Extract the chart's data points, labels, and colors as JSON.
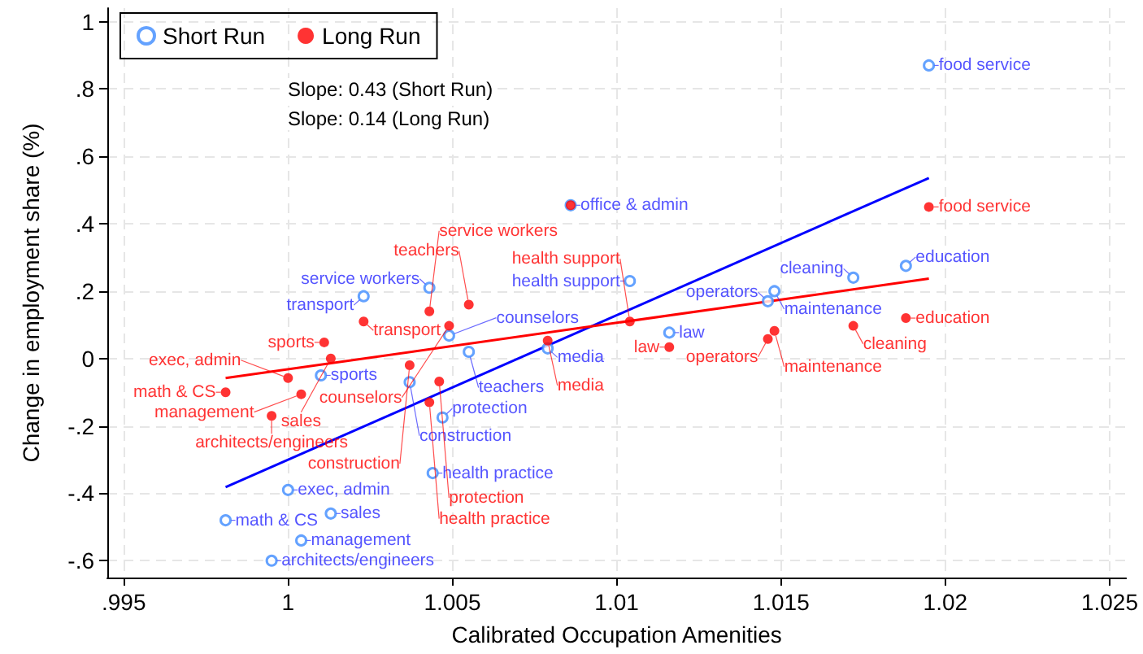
{
  "chart_data": {
    "type": "scatter",
    "xlabel": "Calibrated Occupation Amenities",
    "ylabel": "Change in employment share (%)",
    "xlim": [
      0.9945,
      1.0255
    ],
    "xticks": [
      {
        "value": 0.995,
        "label": ".995"
      },
      1,
      1.005,
      1.01,
      1.015,
      1.02,
      1.025
    ],
    "ylim": [
      -0.65,
      1.04
    ],
    "yticks": [
      {
        "value": -0.6,
        "label": "-.6"
      },
      {
        "value": -0.4,
        "label": "-.4"
      },
      {
        "value": -0.2,
        "label": "-.2"
      },
      0,
      {
        "value": 0.2,
        "label": ".2"
      },
      {
        "value": 0.4,
        "label": ".4"
      },
      {
        "value": 0.6,
        "label": ".6"
      },
      {
        "value": 0.8,
        "label": ".8"
      },
      1
    ],
    "grid": true,
    "legend": "top left",
    "series": [
      {
        "name": "Short Run",
        "marker": "circle",
        "color": "#3d8bff",
        "x": [
          1.0195,
          1.0188,
          1.0172,
          1.0148,
          1.0146,
          1.0116,
          1.0104,
          1.0086,
          1.0043,
          1.0023,
          1.0049,
          1.0055,
          1.0079,
          1.001,
          1.0037,
          1.0047,
          1.0044,
          1.0,
          1.0013,
          0.9981,
          1.0004,
          0.9995
        ],
        "values": [
          0.87,
          0.275,
          0.24,
          0.2,
          0.17,
          0.077,
          0.23,
          0.455,
          0.21,
          0.185,
          0.068,
          0.02,
          0.03,
          -0.05,
          -0.07,
          -0.175,
          -0.34,
          -0.39,
          -0.46,
          -0.48,
          -0.54,
          -0.6
        ]
      },
      {
        "name": "Long Run",
        "marker": "circle",
        "color": "#ff0000",
        "x": [
          1.0195,
          1.0086,
          1.0188,
          1.0172,
          1.0148,
          1.0146,
          1.0116,
          1.0104,
          1.0055,
          1.0043,
          1.0023,
          1.0049,
          1.0079,
          1.0011,
          1.0013,
          1.0037,
          1.0046,
          1.0043,
          1.0,
          1.0004,
          0.9981,
          0.9995
        ],
        "values": [
          0.45,
          0.455,
          0.12,
          0.097,
          0.082,
          0.058,
          0.034,
          0.11,
          0.16,
          0.14,
          0.11,
          0.097,
          0.053,
          0.048,
          0.0,
          -0.02,
          -0.068,
          -0.13,
          -0.058,
          -0.106,
          -0.1,
          -0.17
        ]
      },
      {
        "type": "line",
        "marker": "none",
        "color": "#0000ff",
        "x": [
          0.9981,
          1.0195
        ],
        "values": [
          -0.382,
          0.536
        ]
      },
      {
        "type": "line",
        "marker": "none",
        "color": "#ff0000",
        "x": [
          0.9981,
          1.0195
        ],
        "values": [
          -0.058,
          0.237
        ]
      }
    ],
    "annotations": [
      "Slope: 0.43 (Short Run)",
      "Slope: 0.14 (Long Run)",
      {
        "text": "food service",
        "x": 1.0195,
        "y": 0.87
      },
      {
        "text": "education",
        "x": 1.0188,
        "y": 0.275
      },
      {
        "text": "cleaning",
        "x": 1.0172,
        "y": 0.24
      },
      {
        "text": "maintenance",
        "x": 1.0148,
        "y": 0.2
      },
      {
        "text": "operators",
        "x": 1.0146,
        "y": 0.17
      },
      {
        "text": "law",
        "x": 1.0116,
        "y": 0.077
      },
      {
        "text": "health support",
        "x": 1.0104,
        "y": 0.23
      },
      {
        "text": "service workers",
        "x": 1.0043,
        "y": 0.21
      },
      {
        "text": "transport",
        "x": 1.0023,
        "y": 0.185
      },
      {
        "text": "counselors",
        "x": 1.0049,
        "y": 0.068
      },
      {
        "text": "teachers",
        "x": 1.0055,
        "y": 0.02
      },
      {
        "text": "media",
        "x": 1.0079,
        "y": 0.03
      },
      {
        "text": "sports",
        "x": 1.001,
        "y": -0.05
      },
      {
        "text": "construction",
        "x": 1.0037,
        "y": -0.07
      },
      {
        "text": "protection",
        "x": 1.0047,
        "y": -0.175
      },
      {
        "text": "health practice",
        "x": 1.0044,
        "y": -0.34
      },
      {
        "text": "exec, admin",
        "x": 1.0,
        "y": -0.39
      },
      {
        "text": "sales",
        "x": 1.0013,
        "y": -0.46
      },
      {
        "text": "math & CS",
        "x": 0.9981,
        "y": -0.48
      },
      {
        "text": "management",
        "x": 1.0004,
        "y": -0.54
      },
      {
        "text": "architects/engineers",
        "x": 0.9995,
        "y": -0.6
      },
      {
        "text": "food service",
        "x": 1.0195,
        "y": 0.45
      },
      {
        "text": "office & admin",
        "x": 1.0086,
        "y": 0.455
      },
      {
        "text": "education",
        "x": 1.0188,
        "y": 0.12
      },
      {
        "text": "cleaning",
        "x": 1.0172,
        "y": 0.097
      },
      {
        "text": "maintenance",
        "x": 1.0148,
        "y": 0.082
      },
      {
        "text": "operators",
        "x": 1.0146,
        "y": 0.058
      },
      {
        "text": "law",
        "x": 1.0116,
        "y": 0.034
      },
      {
        "text": "health support",
        "x": 1.0104,
        "y": 0.11
      },
      {
        "text": "teachers",
        "x": 1.0055,
        "y": 0.16
      },
      {
        "text": "service workers",
        "x": 1.0043,
        "y": 0.14
      },
      {
        "text": "transport",
        "x": 1.0023,
        "y": 0.11
      },
      {
        "text": "counselors",
        "x": 1.0049,
        "y": 0.097
      },
      {
        "text": "media",
        "x": 1.0079,
        "y": 0.053
      },
      {
        "text": "sports",
        "x": 1.0011,
        "y": 0.048
      },
      {
        "text": "sales",
        "x": 1.0013,
        "y": 0.0
      },
      {
        "text": "construction",
        "x": 1.0037,
        "y": -0.02
      },
      {
        "text": "protection",
        "x": 1.0046,
        "y": -0.068
      },
      {
        "text": "health practice",
        "x": 1.0043,
        "y": -0.13
      },
      {
        "text": "exec, admin",
        "x": 1.0,
        "y": -0.058
      },
      {
        "text": "management",
        "x": 1.0004,
        "y": -0.106
      },
      {
        "text": "math & CS",
        "x": 0.9981,
        "y": -0.1
      },
      {
        "text": "architects/engineers",
        "x": 0.9995,
        "y": -0.17
      }
    ]
  }
}
